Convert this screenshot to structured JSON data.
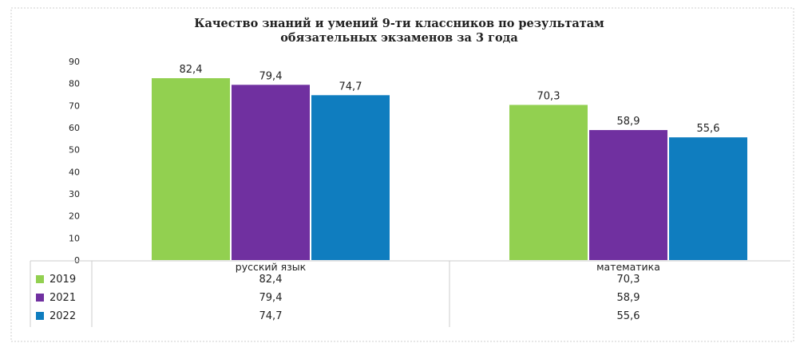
{
  "chart_data": {
    "type": "bar",
    "title_lines": [
      "Качество знаний и умений  9-ти классников по результатам",
      "обязательных экзаменов за 3 года"
    ],
    "categories": [
      "русский язык",
      "математика"
    ],
    "series": [
      {
        "name": "2019",
        "values": [
          82.4,
          70.3
        ],
        "labels": [
          "82,4",
          "70,3"
        ],
        "color": "#92d050"
      },
      {
        "name": "2021",
        "values": [
          79.4,
          58.9
        ],
        "labels": [
          "79,4",
          "58,9"
        ],
        "color": "#7030a0"
      },
      {
        "name": "2022",
        "values": [
          74.7,
          55.6
        ],
        "labels": [
          "74,7",
          "55,6"
        ],
        "color": "#0f7dbf"
      }
    ],
    "ylim": [
      0,
      90
    ],
    "yticks": [
      0,
      10,
      20,
      30,
      40,
      50,
      60,
      70,
      80,
      90
    ],
    "grid": false,
    "legend": "data-table-left"
  }
}
